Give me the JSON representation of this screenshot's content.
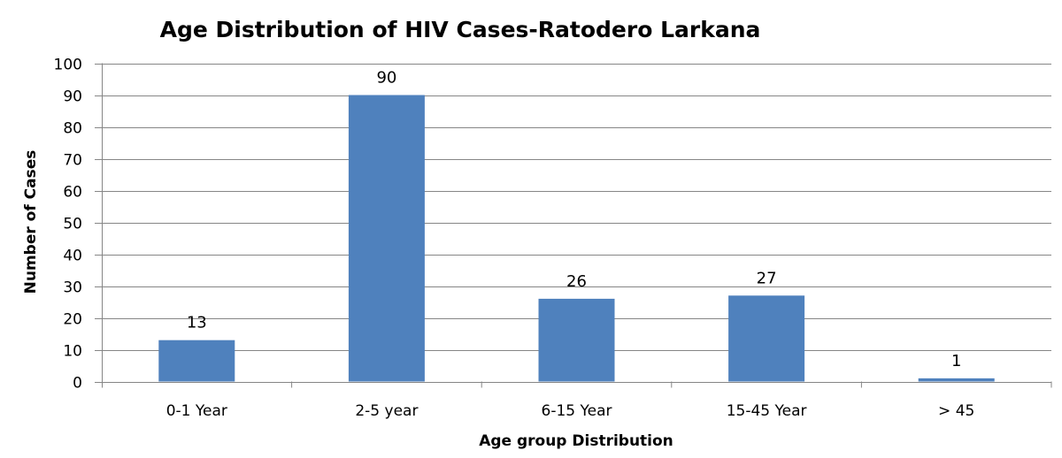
{
  "chart_data": {
    "type": "bar",
    "title": "Age Distribution of HIV Cases-Ratodero Larkana",
    "xlabel": "Age group Distribution",
    "ylabel": "Number of Cases",
    "categories": [
      "0-1 Year",
      "2-5 year",
      "6-15 Year",
      "15-45 Year",
      "> 45"
    ],
    "values": [
      13,
      90,
      26,
      27,
      1
    ],
    "ylim": [
      0,
      100
    ],
    "yticks": [
      0,
      10,
      20,
      30,
      40,
      50,
      60,
      70,
      80,
      90,
      100
    ],
    "grid": true,
    "legend": "none",
    "bar_color": "#4F81BD",
    "grid_color": "#868686"
  }
}
